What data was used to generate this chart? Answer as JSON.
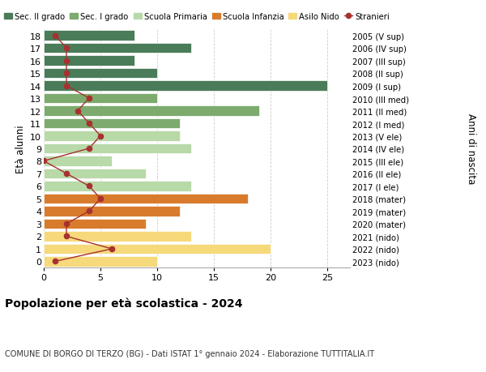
{
  "ages": [
    18,
    17,
    16,
    15,
    14,
    13,
    12,
    11,
    10,
    9,
    8,
    7,
    6,
    5,
    4,
    3,
    2,
    1,
    0
  ],
  "years": [
    "2005 (V sup)",
    "2006 (IV sup)",
    "2007 (III sup)",
    "2008 (II sup)",
    "2009 (I sup)",
    "2010 (III med)",
    "2011 (II med)",
    "2012 (I med)",
    "2013 (V ele)",
    "2014 (IV ele)",
    "2015 (III ele)",
    "2016 (II ele)",
    "2017 (I ele)",
    "2018 (mater)",
    "2019 (mater)",
    "2020 (mater)",
    "2021 (nido)",
    "2022 (nido)",
    "2023 (nido)"
  ],
  "bar_values": [
    8,
    13,
    8,
    10,
    25,
    10,
    19,
    12,
    12,
    13,
    6,
    9,
    13,
    18,
    12,
    9,
    13,
    20,
    10
  ],
  "bar_colors": [
    "#4a7c59",
    "#4a7c59",
    "#4a7c59",
    "#4a7c59",
    "#4a7c59",
    "#7dab6e",
    "#7dab6e",
    "#7dab6e",
    "#b8d9a8",
    "#b8d9a8",
    "#b8d9a8",
    "#b8d9a8",
    "#b8d9a8",
    "#d97b2c",
    "#d97b2c",
    "#d97b2c",
    "#f5d97a",
    "#f5d97a",
    "#f5d97a"
  ],
  "stranieri_values": [
    1,
    2,
    2,
    2,
    2,
    4,
    3,
    4,
    5,
    4,
    0,
    2,
    4,
    5,
    4,
    2,
    2,
    6,
    1
  ],
  "stranieri_color": "#a83030",
  "legend_labels": [
    "Sec. II grado",
    "Sec. I grado",
    "Scuola Primaria",
    "Scuola Infanzia",
    "Asilo Nido",
    "Stranieri"
  ],
  "legend_colors": [
    "#4a7c59",
    "#7dab6e",
    "#b8d9a8",
    "#d97b2c",
    "#f5d97a",
    "#a83030"
  ],
  "ylabel_left": "Età alunni",
  "ylabel_right": "Anni di nascita",
  "title": "Popolazione per età scolastica - 2024",
  "subtitle": "COMUNE DI BORGO DI TERZO (BG) - Dati ISTAT 1° gennaio 2024 - Elaborazione TUTTITALIA.IT",
  "xlim": [
    0,
    27
  ],
  "background_color": "#ffffff",
  "grid_color": "#cccccc"
}
